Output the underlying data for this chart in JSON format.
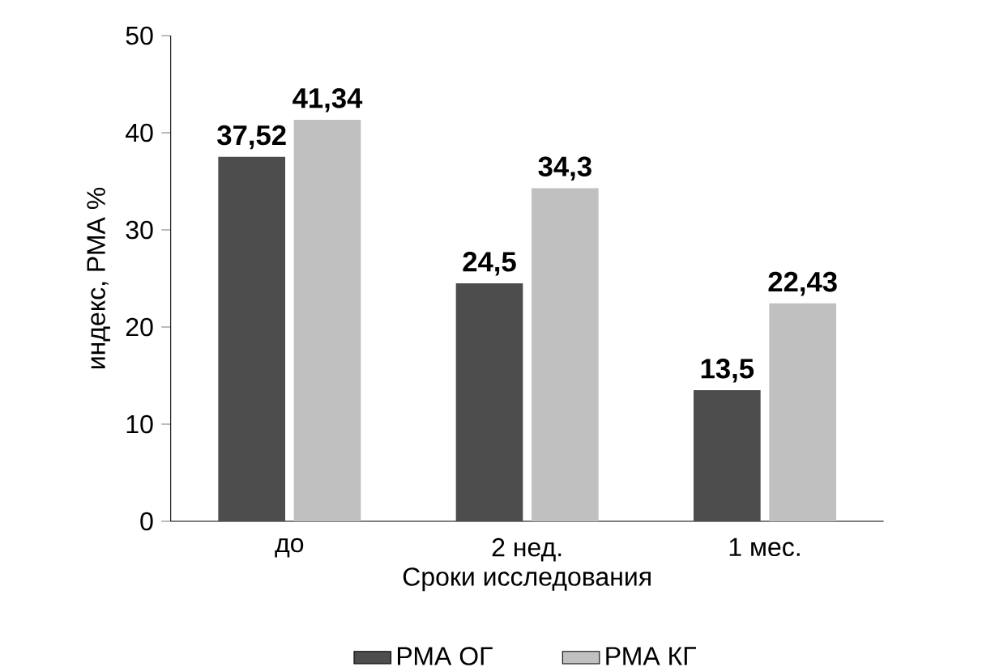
{
  "chart_data": {
    "type": "bar",
    "xlabel": "Сроки исследования",
    "ylabel": "индекс, РМА %",
    "categories": [
      "до",
      "2 нед.",
      "1 мес."
    ],
    "series": [
      {
        "name": "РМА ОГ",
        "color": "#4d4d4d",
        "values": [
          37.52,
          24.5,
          13.5
        ],
        "value_labels": [
          "37,52",
          "24,5",
          "13,5"
        ]
      },
      {
        "name": "РМА КГ",
        "color": "#c0c0c0",
        "values": [
          41.34,
          34.3,
          22.43
        ],
        "value_labels": [
          "41,34",
          "34,3",
          "22,43"
        ]
      }
    ],
    "ylim": [
      0,
      50
    ],
    "yticks": [
      0,
      10,
      20,
      30,
      40,
      50
    ],
    "legend": "bottom",
    "grid": false
  }
}
